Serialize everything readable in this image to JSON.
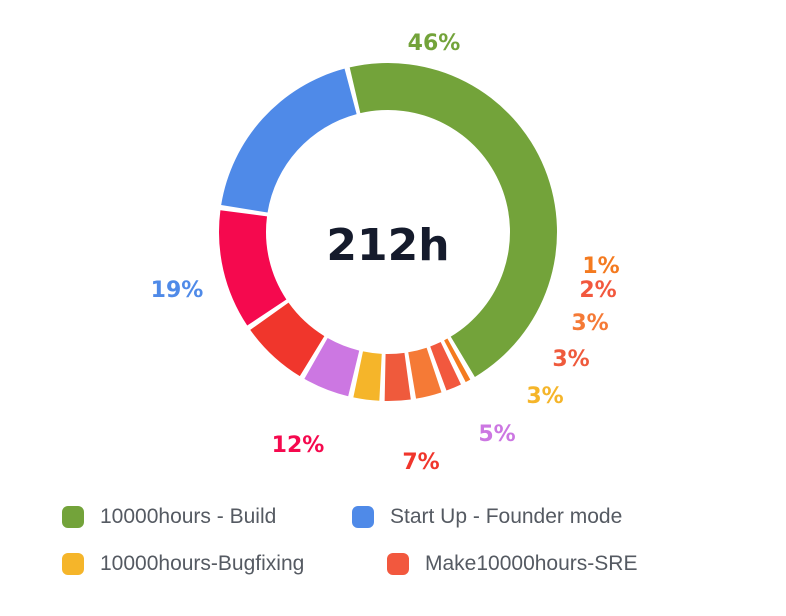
{
  "chart_data": {
    "type": "pie",
    "donut": true,
    "center_label": "212h",
    "slices": [
      {
        "label": "46%",
        "value": 46,
        "color": "#73a33a"
      },
      {
        "label": "1%",
        "value": 1,
        "color": "#f47a1f"
      },
      {
        "label": "2%",
        "value": 2,
        "color": "#f2583e"
      },
      {
        "label": "3%",
        "value": 3,
        "color": "#f57a36"
      },
      {
        "label": "3%",
        "value": 3,
        "color": "#ef5a3c"
      },
      {
        "label": "3%",
        "value": 3,
        "color": "#f5b52a"
      },
      {
        "label": "5%",
        "value": 5,
        "color": "#cc77e2"
      },
      {
        "label": "7%",
        "value": 7,
        "color": "#f0362c"
      },
      {
        "label": "12%",
        "value": 12,
        "color": "#f5094e"
      },
      {
        "label": "19%",
        "value": 19,
        "color": "#4f8ae8"
      }
    ],
    "legend": [
      {
        "name": "10000hours - Build",
        "color": "#73a33a"
      },
      {
        "name": "Start Up - Founder mode",
        "color": "#4f8ae8"
      },
      {
        "name": "10000hours-Bugfixing",
        "color": "#f5b52a"
      },
      {
        "name": "Make10000hours-SRE",
        "color": "#f2583e"
      }
    ],
    "legend_position": "bottom"
  }
}
